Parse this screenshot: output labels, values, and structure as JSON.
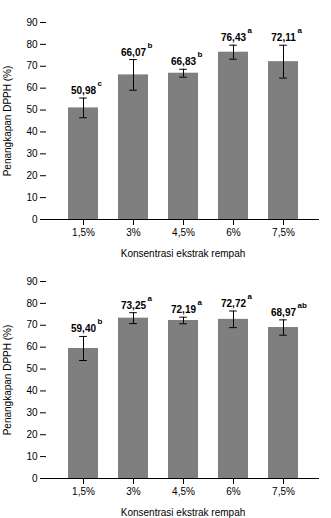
{
  "chart_data": [
    {
      "type": "bar",
      "categories": [
        "1,5%",
        "3%",
        "4,5%",
        "6%",
        "7,5%"
      ],
      "values": [
        50.98,
        66.07,
        66.83,
        76.43,
        72.11
      ],
      "errors": [
        4.5,
        7.0,
        1.8,
        3.2,
        7.5
      ],
      "data_labels": true,
      "value_labels": [
        "50,98",
        "66,07",
        "66,83",
        "76,43",
        "72,11"
      ],
      "annotations": [
        "c",
        "b",
        "b",
        "a",
        "a"
      ],
      "color": "#7f7f7f",
      "xlabel": "Konsentrasi ekstrak rempah",
      "ylabel": "Penangkapan DPPH (%)",
      "ylim": [
        0,
        90
      ],
      "yticks": [
        0,
        10,
        20,
        30,
        40,
        50,
        60,
        70,
        80,
        90
      ]
    },
    {
      "type": "bar",
      "categories": [
        "1,5%",
        "3%",
        "4,5%",
        "6%",
        "7,5%"
      ],
      "values": [
        59.4,
        73.25,
        72.19,
        72.72,
        68.97
      ],
      "errors": [
        5.5,
        2.5,
        1.5,
        3.8,
        3.5
      ],
      "data_labels": true,
      "value_labels": [
        "59,40",
        "73,25",
        "72,19",
        "72,72",
        "68,97"
      ],
      "annotations": [
        "b",
        "a",
        "a",
        "a",
        "ab"
      ],
      "color": "#7f7f7f",
      "xlabel": "Konsentrasi ekstrak rempah",
      "ylabel": "Penangkapan DPPH (%)",
      "ylim": [
        0,
        90
      ],
      "yticks": [
        0,
        10,
        20,
        30,
        40,
        50,
        60,
        70,
        80,
        90
      ]
    }
  ]
}
